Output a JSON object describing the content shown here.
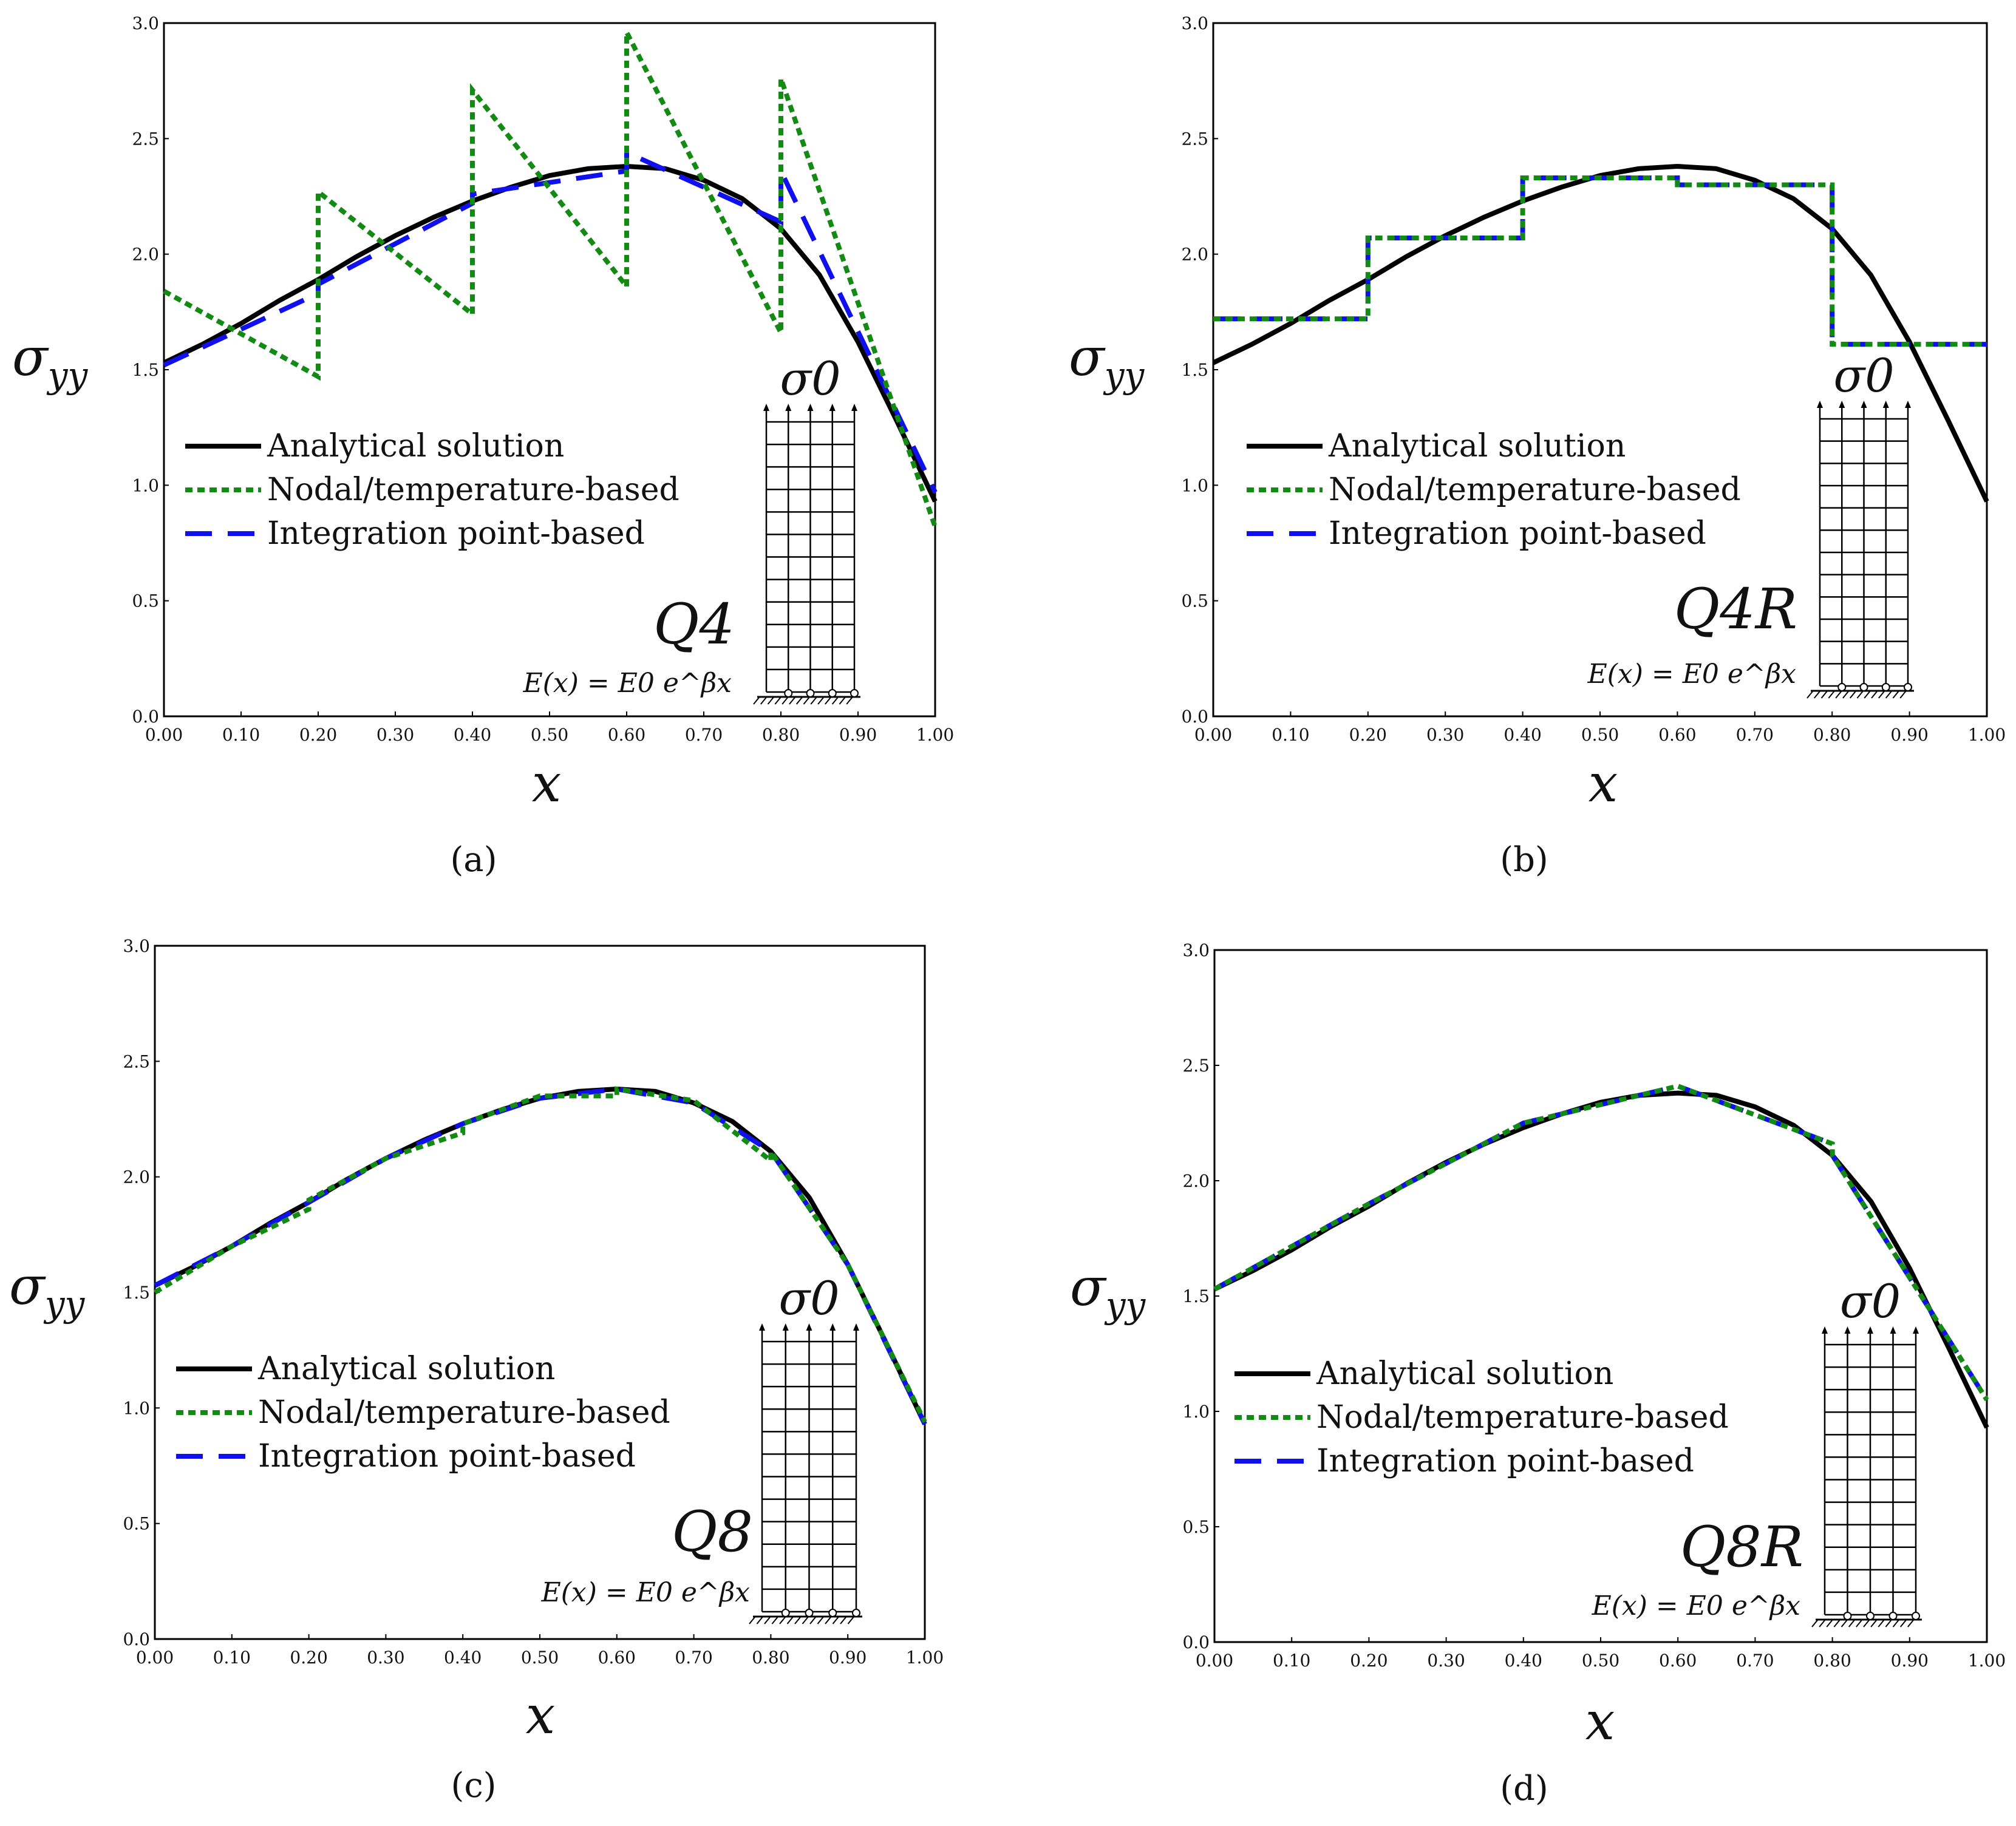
{
  "legend": {
    "analytical": "Analytical solution",
    "nodal": "Nodal/temperature-based",
    "integration": "Integration point-based"
  },
  "axes": {
    "xlabel": "x",
    "ylabel_main": "σ",
    "ylabel_sub": "yy",
    "xticks": [
      "0.00",
      "0.10",
      "0.20",
      "0.30",
      "0.40",
      "0.50",
      "0.60",
      "0.70",
      "0.80",
      "0.90",
      "1.00"
    ],
    "yticks": [
      "0.0",
      "0.5",
      "1.0",
      "1.5",
      "2.0",
      "2.5",
      "3.0"
    ]
  },
  "inset": {
    "load": "σ0",
    "formula": "E(x) = E0 e^βx"
  },
  "colors": {
    "analytical": "#000000",
    "nodal": "#138a13",
    "integration": "#1010ee"
  },
  "chart_data": [
    {
      "type": "line",
      "id": "a",
      "caption": "(a)",
      "element": "Q4",
      "xlim": [
        0,
        1
      ],
      "ylim": [
        0,
        3
      ],
      "series": [
        {
          "name": "Analytical solution",
          "x": [
            0,
            0.05,
            0.1,
            0.15,
            0.2,
            0.25,
            0.3,
            0.35,
            0.4,
            0.45,
            0.5,
            0.55,
            0.6,
            0.65,
            0.7,
            0.75,
            0.8,
            0.85,
            0.9,
            0.95,
            1.0
          ],
          "values": [
            1.53,
            1.61,
            1.7,
            1.8,
            1.89,
            1.99,
            2.08,
            2.16,
            2.23,
            2.29,
            2.34,
            2.37,
            2.38,
            2.37,
            2.32,
            2.24,
            2.11,
            1.91,
            1.62,
            1.28,
            0.93
          ]
        },
        {
          "name": "Nodal/temperature-based",
          "x": [
            0,
            0.2,
            0.2,
            0.4,
            0.4,
            0.6,
            0.6,
            0.8,
            0.8,
            1.0
          ],
          "values": [
            1.84,
            1.47,
            2.27,
            1.74,
            2.71,
            1.86,
            2.96,
            1.66,
            2.76,
            0.82
          ]
        },
        {
          "name": "Integration point-based",
          "x": [
            0,
            0.2,
            0.2,
            0.4,
            0.4,
            0.6,
            0.6,
            0.8,
            0.8,
            1.0
          ],
          "values": [
            1.52,
            1.83,
            1.87,
            2.22,
            2.26,
            2.36,
            2.44,
            2.14,
            2.36,
            0.97
          ]
        }
      ]
    },
    {
      "type": "line",
      "id": "b",
      "caption": "(b)",
      "element": "Q4R",
      "xlim": [
        0,
        1
      ],
      "ylim": [
        0,
        3
      ],
      "series": [
        {
          "name": "Analytical solution",
          "x": [
            0,
            0.05,
            0.1,
            0.15,
            0.2,
            0.25,
            0.3,
            0.35,
            0.4,
            0.45,
            0.5,
            0.55,
            0.6,
            0.65,
            0.7,
            0.75,
            0.8,
            0.85,
            0.9,
            0.95,
            1.0
          ],
          "values": [
            1.53,
            1.61,
            1.7,
            1.8,
            1.89,
            1.99,
            2.08,
            2.16,
            2.23,
            2.29,
            2.34,
            2.37,
            2.38,
            2.37,
            2.32,
            2.24,
            2.11,
            1.91,
            1.62,
            1.28,
            0.93
          ]
        },
        {
          "name": "Nodal/temperature-based",
          "x": [
            0,
            0.2,
            0.2,
            0.4,
            0.4,
            0.6,
            0.6,
            0.8,
            0.8,
            1.0
          ],
          "values": [
            1.72,
            1.72,
            2.07,
            2.07,
            2.33,
            2.33,
            2.3,
            2.3,
            1.61,
            1.61
          ]
        },
        {
          "name": "Integration point-based",
          "x": [
            0,
            0.2,
            0.2,
            0.4,
            0.4,
            0.6,
            0.6,
            0.8,
            0.8,
            1.0
          ],
          "values": [
            1.72,
            1.72,
            2.07,
            2.07,
            2.33,
            2.33,
            2.3,
            2.3,
            1.61,
            1.61
          ]
        }
      ]
    },
    {
      "type": "line",
      "id": "c",
      "caption": "(c)",
      "element": "Q8",
      "xlim": [
        0,
        1
      ],
      "ylim": [
        0,
        3
      ],
      "series": [
        {
          "name": "Analytical solution",
          "x": [
            0,
            0.05,
            0.1,
            0.15,
            0.2,
            0.25,
            0.3,
            0.35,
            0.4,
            0.45,
            0.5,
            0.55,
            0.6,
            0.65,
            0.7,
            0.75,
            0.8,
            0.85,
            0.9,
            0.95,
            1.0
          ],
          "values": [
            1.53,
            1.61,
            1.7,
            1.8,
            1.89,
            1.99,
            2.08,
            2.16,
            2.23,
            2.29,
            2.34,
            2.37,
            2.38,
            2.37,
            2.32,
            2.24,
            2.11,
            1.91,
            1.62,
            1.28,
            0.93
          ]
        },
        {
          "name": "Nodal/temperature-based",
          "x": [
            0,
            0.1,
            0.2,
            0.2,
            0.3,
            0.4,
            0.4,
            0.5,
            0.6,
            0.6,
            0.7,
            0.8,
            0.8,
            0.9,
            1.0
          ],
          "values": [
            1.5,
            1.7,
            1.86,
            1.9,
            2.08,
            2.19,
            2.23,
            2.35,
            2.35,
            2.38,
            2.33,
            2.07,
            2.11,
            1.62,
            0.94
          ]
        },
        {
          "name": "Integration point-based",
          "x": [
            0,
            0.1,
            0.2,
            0.3,
            0.4,
            0.5,
            0.6,
            0.7,
            0.8,
            0.9,
            1.0
          ],
          "values": [
            1.53,
            1.7,
            1.89,
            2.08,
            2.23,
            2.34,
            2.38,
            2.32,
            2.11,
            1.62,
            0.93
          ]
        }
      ]
    },
    {
      "type": "line",
      "id": "d",
      "caption": "(d)",
      "element": "Q8R",
      "xlim": [
        0,
        1
      ],
      "ylim": [
        0,
        3
      ],
      "series": [
        {
          "name": "Analytical solution",
          "x": [
            0,
            0.05,
            0.1,
            0.15,
            0.2,
            0.25,
            0.3,
            0.35,
            0.4,
            0.45,
            0.5,
            0.55,
            0.6,
            0.65,
            0.7,
            0.75,
            0.8,
            0.85,
            0.9,
            0.95,
            1.0
          ],
          "values": [
            1.53,
            1.61,
            1.7,
            1.8,
            1.89,
            1.99,
            2.08,
            2.16,
            2.23,
            2.29,
            2.34,
            2.37,
            2.38,
            2.37,
            2.32,
            2.24,
            2.11,
            1.91,
            1.62,
            1.28,
            0.93
          ]
        },
        {
          "name": "Nodal/temperature-based",
          "x": [
            0,
            0.2,
            0.4,
            0.6,
            0.8,
            0.8,
            1.0
          ],
          "values": [
            1.53,
            1.9,
            2.25,
            2.41,
            2.16,
            2.11,
            1.05
          ]
        },
        {
          "name": "Integration point-based",
          "x": [
            0,
            0.2,
            0.4,
            0.6,
            0.8,
            0.8,
            1.0
          ],
          "values": [
            1.53,
            1.9,
            2.25,
            2.41,
            2.16,
            2.11,
            1.05
          ]
        }
      ]
    }
  ]
}
